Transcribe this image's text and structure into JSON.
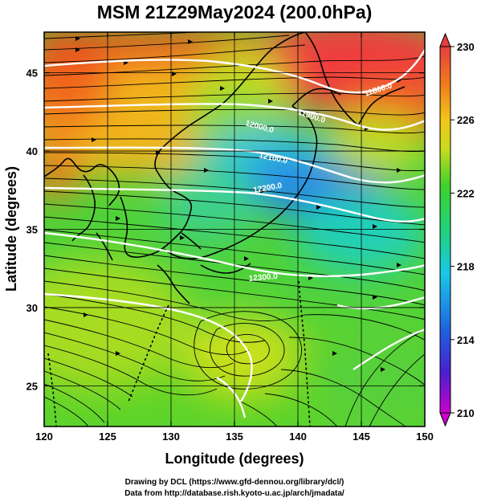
{
  "title": "MSM 21Z29May2024 (200.0hPa)",
  "xlabel": "Longitude (degrees)",
  "ylabel": "Latitude  (degrees)",
  "credit_line1": "Drawing by DCL (https://www.gfd-dennou.org/library/dcl/)",
  "credit_line2": "Data from http://database.rish.kyoto-u.ac.jp/arch/jmadata/",
  "colors": {
    "contour": "#ffffff",
    "streamline": "#000000",
    "coast": "#000000"
  },
  "chart_data": {
    "type": "heatmap",
    "description_fields": "temperature shading, geopotential height contours, wind streamlines",
    "xlim": [
      120,
      150
    ],
    "ylim": [
      22.4,
      47.6
    ],
    "x_ticks": [
      120,
      125,
      130,
      135,
      140,
      145,
      150
    ],
    "y_ticks": [
      25,
      30,
      35,
      40,
      45
    ],
    "colorbar": {
      "min": 210,
      "max": 230,
      "ticks": [
        210,
        214,
        218,
        222,
        226,
        230
      ],
      "extend": "both",
      "colors": [
        "#cc00cc",
        "#4a1fd0",
        "#1f5fe0",
        "#19c8e6",
        "#20d27a",
        "#3ed12a",
        "#c8dc1e",
        "#f2c617",
        "#f07a1c",
        "#e83e3e"
      ]
    },
    "height_contours": [
      {
        "label": "11800.0",
        "lon": 145.5,
        "lat": 44.2
      },
      {
        "label": "11900.0",
        "lon": 140.6,
        "lat": 42.7
      },
      {
        "label": "12000.0",
        "lon": 136.5,
        "lat": 42.0
      },
      {
        "label": "12100.0",
        "lon": 137.7,
        "lat": 39.9
      },
      {
        "label": "12200.0",
        "lon": 136.8,
        "lat": 37.4
      },
      {
        "label": "12300.0",
        "lon": 136.2,
        "lat": 33.0
      }
    ]
  }
}
